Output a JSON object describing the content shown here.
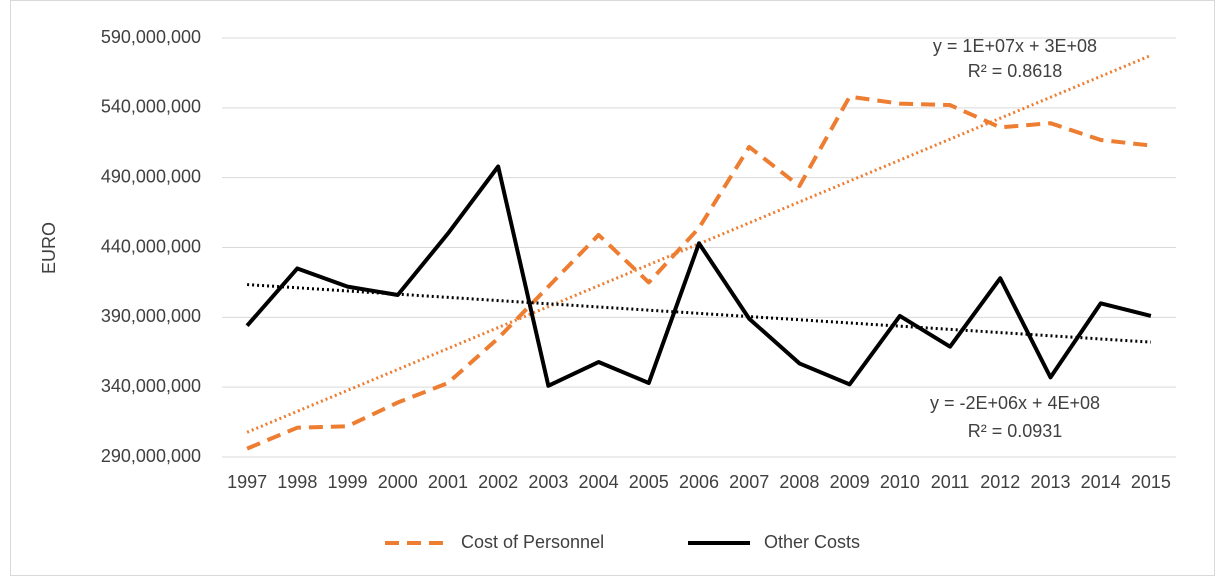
{
  "chart_data": {
    "type": "line",
    "y_label": "EURO",
    "categories": [
      "1997",
      "1998",
      "1999",
      "2000",
      "2001",
      "2002",
      "2003",
      "2004",
      "2005",
      "2006",
      "2007",
      "2008",
      "2009",
      "2010",
      "2011",
      "2012",
      "2013",
      "2014",
      "2015"
    ],
    "ylim": [
      290000000,
      590000000
    ],
    "yticks": [
      {
        "value": 290000000,
        "label": "290,000,000"
      },
      {
        "value": 340000000,
        "label": "340,000,000"
      },
      {
        "value": 390000000,
        "label": "390,000,000"
      },
      {
        "value": 440000000,
        "label": "440,000,000"
      },
      {
        "value": 490000000,
        "label": "490,000,000"
      },
      {
        "value": 540000000,
        "label": "540,000,000"
      },
      {
        "value": 590000000,
        "label": "590,000,000"
      }
    ],
    "grid": true,
    "legend": "bottom",
    "series": [
      {
        "name": "Cost of Personnel",
        "color": "#ED7D31",
        "dash": "dashed",
        "values": [
          296000000,
          311000000,
          312000000,
          329000000,
          343000000,
          375000000,
          412000000,
          449000000,
          415000000,
          454000000,
          512000000,
          484000000,
          548000000,
          543000000,
          542000000,
          526000000,
          529000000,
          517000000,
          513000000
        ],
        "trendline": {
          "equation": "y = 1E+07x + 3E+08",
          "r2": "R² = 0.8618"
        }
      },
      {
        "name": "Other Costs",
        "color": "#000000",
        "dash": "solid",
        "values": [
          384000000,
          425000000,
          412000000,
          406000000,
          450000000,
          498000000,
          341000000,
          358000000,
          343000000,
          443000000,
          389000000,
          357000000,
          342000000,
          391000000,
          369000000,
          418000000,
          347000000,
          400000000,
          391000000
        ],
        "trendline": {
          "equation": "y = -2E+06x + 4E+08",
          "r2": "R² = 0.0931"
        }
      }
    ]
  }
}
